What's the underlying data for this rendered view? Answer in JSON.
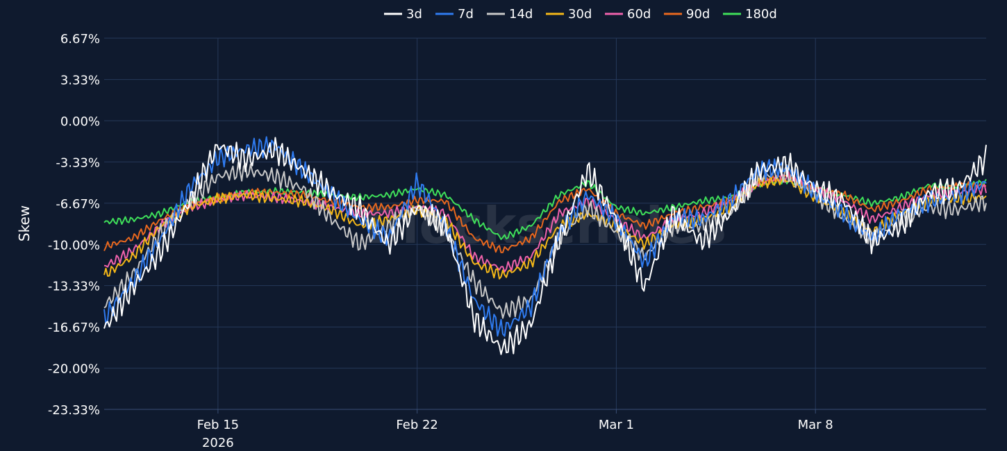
{
  "chart_data": {
    "type": "line",
    "ylabel": "Skew",
    "watermark": "Blockscholes",
    "y_ticks": [
      "6.67%",
      "3.33%",
      "0.00%",
      "-3.33%",
      "-6.67%",
      "-10.00%",
      "-13.33%",
      "-16.67%",
      "-20.00%",
      "-23.33%"
    ],
    "ylim": [
      -23.33,
      6.67
    ],
    "x_ticks": [
      {
        "date": "2026-02-15",
        "label": "Feb 15",
        "sublabel": "2026"
      },
      {
        "date": "2026-02-22",
        "label": "Feb 22",
        "sublabel": ""
      },
      {
        "date": "2026-03-01",
        "label": "Mar 1",
        "sublabel": ""
      },
      {
        "date": "2026-03-08",
        "label": "Mar 8",
        "sublabel": ""
      }
    ],
    "xlim": [
      "2026-02-11",
      "2026-03-14"
    ],
    "legend_placement": "top-center",
    "grid": true,
    "colors": {
      "background": "#0f1a2e",
      "grid": "#26395a",
      "axis": "#3a4f75"
    },
    "x": [
      "2026-02-11",
      "2026-02-12",
      "2026-02-13",
      "2026-02-14",
      "2026-02-15",
      "2026-02-16",
      "2026-02-17",
      "2026-02-18",
      "2026-02-19",
      "2026-02-20",
      "2026-02-21",
      "2026-02-22",
      "2026-02-23",
      "2026-02-24",
      "2026-02-25",
      "2026-02-26",
      "2026-02-27",
      "2026-02-28",
      "2026-03-01",
      "2026-03-02",
      "2026-03-03",
      "2026-03-04",
      "2026-03-05",
      "2026-03-06",
      "2026-03-07",
      "2026-03-08",
      "2026-03-09",
      "2026-03-10",
      "2026-03-11",
      "2026-03-12",
      "2026-03-13",
      "2026-03-14"
    ],
    "series": [
      {
        "name": "3d",
        "color": "#ffffff",
        "values": [
          -16.8,
          -13.5,
          -10.5,
          -6.5,
          -2.0,
          -3.2,
          -2.3,
          -4.0,
          -5.8,
          -7.2,
          -10.0,
          -7.0,
          -8.5,
          -16.0,
          -18.5,
          -16.5,
          -9.5,
          -4.0,
          -8.0,
          -13.5,
          -7.5,
          -9.8,
          -7.5,
          -4.0,
          -3.5,
          -5.5,
          -6.5,
          -9.8,
          -8.5,
          -5.8,
          -5.5,
          -3.0
        ]
      },
      {
        "name": "7d",
        "color": "#2f7bf0",
        "values": [
          -16.0,
          -13.0,
          -9.5,
          -5.5,
          -3.0,
          -2.3,
          -2.0,
          -4.0,
          -6.0,
          -8.0,
          -9.5,
          -5.0,
          -8.5,
          -14.5,
          -17.0,
          -15.0,
          -9.0,
          -6.0,
          -8.0,
          -11.5,
          -7.8,
          -8.0,
          -6.5,
          -4.0,
          -3.8,
          -5.8,
          -7.5,
          -9.5,
          -7.5,
          -6.5,
          -6.0,
          -5.0
        ]
      },
      {
        "name": "14d",
        "color": "#c8c8c8",
        "values": [
          -15.0,
          -12.5,
          -9.0,
          -6.5,
          -4.5,
          -4.0,
          -4.5,
          -5.5,
          -8.0,
          -10.0,
          -8.5,
          -7.0,
          -8.8,
          -13.0,
          -15.5,
          -14.5,
          -9.5,
          -7.0,
          -9.0,
          -11.0,
          -8.5,
          -8.5,
          -7.5,
          -4.5,
          -4.2,
          -6.0,
          -7.8,
          -9.5,
          -8.0,
          -7.0,
          -7.2,
          -6.5
        ]
      },
      {
        "name": "30d",
        "color": "#f5b818",
        "values": [
          -12.5,
          -11.0,
          -8.5,
          -7.0,
          -6.3,
          -6.0,
          -6.3,
          -6.5,
          -7.2,
          -8.5,
          -8.0,
          -7.2,
          -8.0,
          -11.5,
          -12.5,
          -11.5,
          -8.5,
          -7.5,
          -8.5,
          -10.0,
          -8.5,
          -8.0,
          -7.0,
          -5.0,
          -4.8,
          -6.2,
          -7.5,
          -9.0,
          -7.5,
          -6.5,
          -6.3,
          -6.2
        ]
      },
      {
        "name": "60d",
        "color": "#f062ac",
        "values": [
          -11.8,
          -10.5,
          -8.5,
          -7.0,
          -6.4,
          -6.0,
          -6.2,
          -6.5,
          -7.0,
          -7.5,
          -7.5,
          -7.0,
          -7.5,
          -11.0,
          -12.0,
          -11.0,
          -7.5,
          -6.5,
          -8.0,
          -9.5,
          -8.0,
          -7.5,
          -6.5,
          -5.0,
          -4.5,
          -5.5,
          -6.5,
          -8.0,
          -7.0,
          -6.0,
          -5.8,
          -5.5
        ]
      },
      {
        "name": "90d",
        "color": "#e9681e",
        "values": [
          -10.2,
          -9.5,
          -8.0,
          -6.8,
          -6.3,
          -5.8,
          -5.8,
          -6.0,
          -6.5,
          -7.0,
          -7.0,
          -6.4,
          -6.5,
          -9.5,
          -10.5,
          -9.5,
          -6.5,
          -5.5,
          -7.5,
          -8.5,
          -7.5,
          -7.0,
          -6.5,
          -5.0,
          -4.5,
          -5.5,
          -6.0,
          -7.2,
          -6.5,
          -5.5,
          -5.3,
          -5.2
        ]
      },
      {
        "name": "180d",
        "color": "#3fe05a",
        "values": [
          -8.2,
          -8.0,
          -7.5,
          -6.5,
          -6.2,
          -5.8,
          -5.7,
          -5.8,
          -6.0,
          -6.2,
          -6.0,
          -5.5,
          -6.0,
          -8.0,
          -9.5,
          -8.5,
          -6.0,
          -5.0,
          -7.0,
          -7.5,
          -7.0,
          -6.5,
          -6.2,
          -5.2,
          -4.8,
          -5.5,
          -6.0,
          -6.7,
          -6.2,
          -5.2,
          -5.3,
          -5.0
        ]
      }
    ]
  }
}
